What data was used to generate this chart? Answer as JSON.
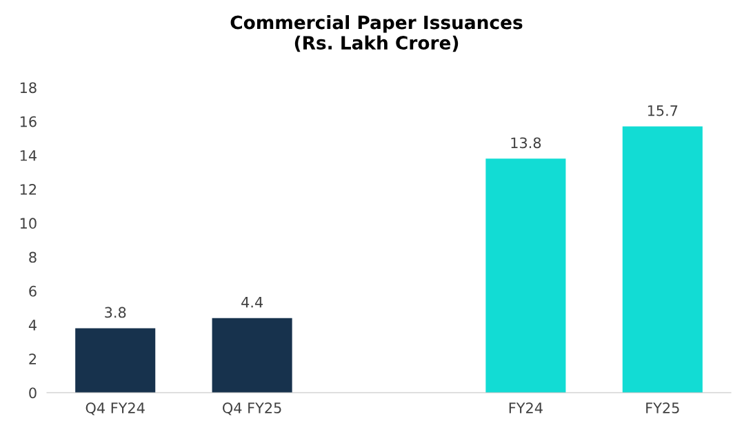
{
  "chart_data": {
    "type": "bar",
    "title": "Commercial Paper Issuances\n(Rs. Lakh Crore)",
    "categories": [
      "Q4 FY24",
      "Q4 FY25",
      null,
      "FY24",
      "FY25"
    ],
    "values": [
      3.8,
      4.4,
      null,
      13.8,
      15.7
    ],
    "colors": [
      "#17324d",
      "#17324d",
      null,
      "#12dcd4",
      "#12dcd4"
    ],
    "ylim": [
      0,
      18
    ],
    "yticks": [
      0,
      2,
      4,
      6,
      8,
      10,
      12,
      14,
      16,
      18
    ],
    "data_labels": true,
    "grid": false,
    "legend": false
  }
}
